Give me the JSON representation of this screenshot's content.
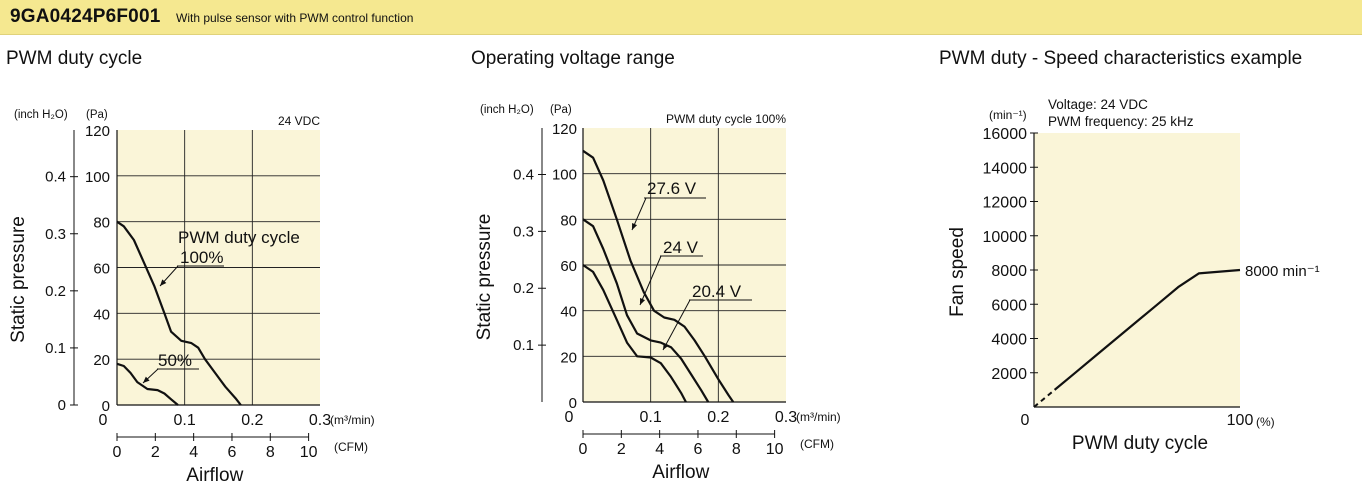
{
  "header": {
    "model": "9GA0424P6F001",
    "subtitle": "With pulse sensor with PWM control function",
    "bg_color": "#f5e890"
  },
  "chart_data": [
    {
      "type": "line",
      "title": "PWM duty cycle",
      "note": "24 VDC",
      "xlabel": "Airflow",
      "ylabel": "Static pressure",
      "x_unit_primary": "(m³/min)",
      "x_unit_secondary": "(CFM)",
      "y_unit_inner": "(Pa)",
      "y_unit_outer": "(inch H₂O)",
      "xlim": [
        0,
        0.3
      ],
      "ylim": [
        0,
        120
      ],
      "x_ticks": [
        "0",
        "0.1",
        "0.2",
        "0.3"
      ],
      "x_ticks_secondary": [
        "0",
        "2",
        "4",
        "6",
        "8",
        "10"
      ],
      "y_ticks": [
        "0",
        "20",
        "40",
        "60",
        "80",
        "100",
        "120"
      ],
      "y_ticks_secondary": [
        "0",
        "0.1",
        "0.2",
        "0.3",
        "0.4"
      ],
      "plot_bg": "#faf5d8",
      "grid": true,
      "series": [
        {
          "name": "PWM duty cycle 100%",
          "label_lines": [
            "PWM duty cycle",
            "100%"
          ],
          "points": [
            [
              0,
              80
            ],
            [
              0.01,
              78
            ],
            [
              0.025,
              72
            ],
            [
              0.04,
              62
            ],
            [
              0.055,
              52
            ],
            [
              0.07,
              40
            ],
            [
              0.08,
              32
            ],
            [
              0.095,
              28
            ],
            [
              0.11,
              27
            ],
            [
              0.12,
              25
            ],
            [
              0.13,
              20
            ],
            [
              0.145,
              14
            ],
            [
              0.16,
              8
            ],
            [
              0.175,
              3
            ],
            [
              0.183,
              0
            ]
          ]
        },
        {
          "name": "50%",
          "label_lines": [
            "50%"
          ],
          "points": [
            [
              0,
              18
            ],
            [
              0.01,
              17
            ],
            [
              0.02,
              14
            ],
            [
              0.03,
              10
            ],
            [
              0.045,
              7
            ],
            [
              0.06,
              6.5
            ],
            [
              0.07,
              5
            ],
            [
              0.08,
              2.5
            ],
            [
              0.09,
              0
            ]
          ]
        }
      ]
    },
    {
      "type": "line",
      "title": "Operating voltage range",
      "note": "PWM duty cycle 100%",
      "xlabel": "Airflow",
      "ylabel": "Static pressure",
      "x_unit_primary": "(m³/min)",
      "x_unit_secondary": "(CFM)",
      "y_unit_inner": "(Pa)",
      "y_unit_outer": "(inch H₂O)",
      "xlim": [
        0,
        0.3
      ],
      "ylim": [
        0,
        120
      ],
      "x_ticks": [
        "0",
        "0.1",
        "0.2",
        "0.3"
      ],
      "x_ticks_secondary": [
        "0",
        "2",
        "4",
        "6",
        "8",
        "10"
      ],
      "y_ticks": [
        "0",
        "20",
        "40",
        "60",
        "80",
        "100",
        "120"
      ],
      "y_ticks_secondary": [
        "0.1",
        "0.2",
        "0.3",
        "0.4"
      ],
      "plot_bg": "#faf5d8",
      "grid": true,
      "series": [
        {
          "name": "27.6 V",
          "label_lines": [
            "27.6 V"
          ],
          "points": [
            [
              0,
              110
            ],
            [
              0.015,
              107
            ],
            [
              0.03,
              97
            ],
            [
              0.05,
              80
            ],
            [
              0.07,
              62
            ],
            [
              0.09,
              48
            ],
            [
              0.105,
              40
            ],
            [
              0.12,
              37
            ],
            [
              0.135,
              36
            ],
            [
              0.15,
              33
            ],
            [
              0.165,
              27
            ],
            [
              0.18,
              20
            ],
            [
              0.2,
              10
            ],
            [
              0.215,
              3
            ],
            [
              0.222,
              0
            ]
          ]
        },
        {
          "name": "24 V",
          "label_lines": [
            "24 V"
          ],
          "points": [
            [
              0,
              80
            ],
            [
              0.015,
              77
            ],
            [
              0.03,
              67
            ],
            [
              0.05,
              52
            ],
            [
              0.065,
              38
            ],
            [
              0.08,
              30
            ],
            [
              0.1,
              27
            ],
            [
              0.115,
              26
            ],
            [
              0.13,
              24
            ],
            [
              0.145,
              19
            ],
            [
              0.16,
              12
            ],
            [
              0.175,
              5
            ],
            [
              0.185,
              0
            ]
          ]
        },
        {
          "name": "20.4 V",
          "label_lines": [
            "20.4 V"
          ],
          "points": [
            [
              0,
              60
            ],
            [
              0.015,
              57
            ],
            [
              0.03,
              49
            ],
            [
              0.05,
              36
            ],
            [
              0.065,
              26
            ],
            [
              0.08,
              20
            ],
            [
              0.1,
              19.5
            ],
            [
              0.115,
              17
            ],
            [
              0.13,
              11
            ],
            [
              0.145,
              4
            ],
            [
              0.152,
              0
            ]
          ]
        }
      ]
    },
    {
      "type": "line",
      "title": "PWM duty - Speed characteristics example",
      "note_lines": [
        "Voltage: 24 VDC",
        "PWM frequency: 25 kHz"
      ],
      "xlabel": "PWM duty cycle",
      "ylabel": "Fan speed",
      "x_unit": "(%)",
      "y_unit": "(min⁻¹)",
      "xlim": [
        0,
        100
      ],
      "ylim": [
        0,
        16000
      ],
      "x_ticks": [
        "0",
        "100"
      ],
      "y_ticks": [
        "2000",
        "4000",
        "6000",
        "8000",
        "10000",
        "12000",
        "14000",
        "16000"
      ],
      "plot_bg": "#faf5d8",
      "grid": false,
      "end_label": "8000 min⁻¹",
      "series": [
        {
          "name": "Fan speed",
          "points": [
            [
              10,
              1000
            ],
            [
              20,
              2000
            ],
            [
              30,
              3000
            ],
            [
              40,
              4000
            ],
            [
              50,
              5000
            ],
            [
              60,
              6000
            ],
            [
              70,
              7000
            ],
            [
              80,
              7800
            ],
            [
              100,
              8000
            ]
          ],
          "dashed_points": [
            [
              0,
              0
            ],
            [
              10,
              1000
            ]
          ]
        }
      ]
    }
  ]
}
